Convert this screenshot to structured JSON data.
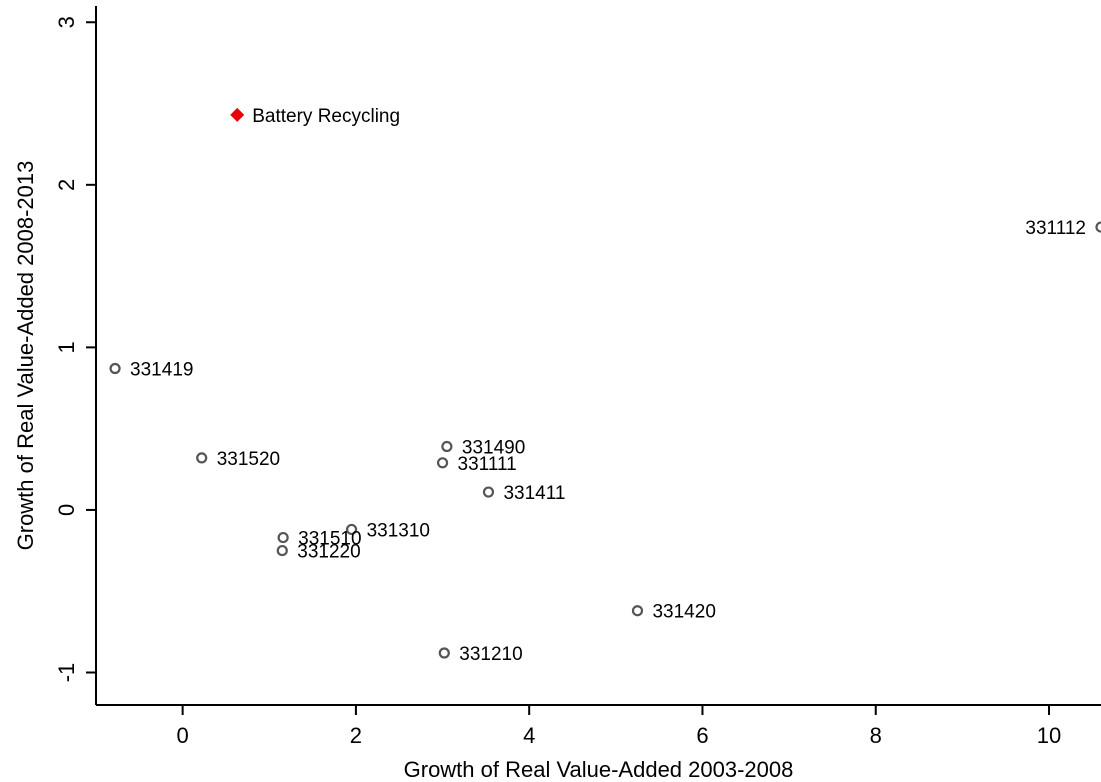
{
  "chart_data": {
    "type": "scatter",
    "title": "",
    "xlabel": "Growth of Real Value-Added 2003-2008",
    "ylabel": "Growth of Real Value-Added 2008-2013",
    "xlim": [
      -1,
      10.6
    ],
    "ylim": [
      -1.2,
      3.1
    ],
    "xticks": [
      0,
      2,
      4,
      6,
      8,
      10
    ],
    "yticks": [
      -1,
      0,
      1,
      2,
      3
    ],
    "grid": false,
    "series": [
      {
        "marker": "hollow-circle",
        "color": "#555555",
        "points": [
          {
            "label": "331112",
            "x": 10.6,
            "y": 1.74
          },
          {
            "label": "331419",
            "x": -0.78,
            "y": 0.87
          },
          {
            "label": "331490",
            "x": 3.05,
            "y": 0.39
          },
          {
            "label": "331520",
            "x": 0.22,
            "y": 0.32
          },
          {
            "label": "331111",
            "x": 3.0,
            "y": 0.29
          },
          {
            "label": "331411",
            "x": 3.53,
            "y": 0.11
          },
          {
            "label": "331310",
            "x": 1.95,
            "y": -0.12
          },
          {
            "label": "331510",
            "x": 1.16,
            "y": -0.17
          },
          {
            "label": "331220",
            "x": 1.15,
            "y": -0.25
          },
          {
            "label": "331420",
            "x": 5.25,
            "y": -0.62
          },
          {
            "label": "331210",
            "x": 3.02,
            "y": -0.88
          }
        ]
      },
      {
        "marker": "filled-diamond",
        "color": "#e8000b",
        "points": [
          {
            "label": "Battery Recycling",
            "x": 0.63,
            "y": 2.43
          }
        ]
      }
    ]
  }
}
